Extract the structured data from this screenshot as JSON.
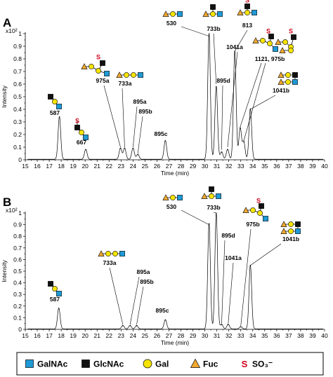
{
  "chart_data": [
    {
      "type": "line",
      "panel": "A",
      "scale_label": "x10²",
      "ylabel": "Intensity",
      "xlabel": "Time (min)",
      "xlim": [
        15,
        40
      ],
      "ylim": [
        0,
        1
      ],
      "xticks": [
        "15",
        "16",
        "17",
        "18",
        "19",
        "20",
        "21",
        "22",
        "23",
        "24",
        "25",
        "26",
        "27",
        "28",
        "29",
        "30",
        "31",
        "32",
        "33",
        "34",
        "35",
        "36",
        "37",
        "38",
        "39",
        "40"
      ],
      "yticks": [
        "0",
        "0.1",
        "0.2",
        "0.3",
        "0.4",
        "0.5",
        "0.6",
        "0.7",
        "0.8",
        "0.9",
        "1"
      ],
      "peaks": [
        {
          "label": "587",
          "x": 17.85,
          "y": 0.34
        },
        {
          "label": "667",
          "x": 20.05,
          "y": 0.08
        },
        {
          "label": "975a",
          "x": 22.95,
          "y": 0.09
        },
        {
          "label": "733a",
          "x": 23.3,
          "y": 0.09
        },
        {
          "label": "895a",
          "x": 24.0,
          "y": 0.09
        },
        {
          "label": "895b",
          "x": 24.4,
          "y": 0.04
        },
        {
          "label": "895c",
          "x": 26.7,
          "y": 0.15
        },
        {
          "label": "530",
          "x": 30.35,
          "y": 1.0
        },
        {
          "label": "733b",
          "x": 30.95,
          "y": 0.58
        },
        {
          "label": "895d",
          "x": 31.4,
          "y": 0.06
        },
        {
          "label": "1041a",
          "x": 31.9,
          "y": 0.08
        },
        {
          "label": "813",
          "x": 32.5,
          "y": 0.86
        },
        {
          "label": "1121, 975b",
          "x": 32.95,
          "y": 0.25
        },
        {
          "label": "",
          "x": 33.25,
          "y": 0.14
        },
        {
          "label": "1041b",
          "x": 33.8,
          "y": 0.4
        }
      ]
    },
    {
      "type": "line",
      "panel": "B",
      "scale_label": "x10²",
      "ylabel": "Intensity",
      "xlabel": "Time (min)",
      "xlim": [
        15,
        40
      ],
      "ylim": [
        0,
        1
      ],
      "xticks": [
        "15",
        "16",
        "17",
        "18",
        "19",
        "20",
        "21",
        "22",
        "23",
        "24",
        "25",
        "26",
        "27",
        "28",
        "29",
        "30",
        "31",
        "32",
        "33",
        "34",
        "35",
        "36",
        "37",
        "38",
        "39",
        "40"
      ],
      "yticks": [
        "0",
        "0.1",
        "0.2",
        "0.3",
        "0.4",
        "0.5",
        "0.6",
        "0.7",
        "0.8",
        "0.9",
        "1"
      ],
      "peaks": [
        {
          "label": "587",
          "x": 17.8,
          "y": 0.18
        },
        {
          "label": "733a",
          "x": 23.15,
          "y": 0.03
        },
        {
          "label": "895a",
          "x": 23.75,
          "y": 0.03
        },
        {
          "label": "895b",
          "x": 24.3,
          "y": 0.03
        },
        {
          "label": "895c",
          "x": 26.7,
          "y": 0.08
        },
        {
          "label": "530",
          "x": 30.35,
          "y": 0.91
        },
        {
          "label": "733b",
          "x": 30.95,
          "y": 1.0
        },
        {
          "label": "895d",
          "x": 31.4,
          "y": 0.04
        },
        {
          "label": "1041a",
          "x": 31.95,
          "y": 0.04
        },
        {
          "label": "975b",
          "x": 33.0,
          "y": 0.02
        },
        {
          "label": "1041b",
          "x": 33.8,
          "y": 0.55
        }
      ]
    }
  ],
  "legend": {
    "items": [
      {
        "label": "GalNAc",
        "shape": "square",
        "color": "#1f9ad6"
      },
      {
        "label": "GlcNAc",
        "shape": "square",
        "color": "#111111"
      },
      {
        "label": "Gal",
        "shape": "circle",
        "color": "#f5e400"
      },
      {
        "label": "Fuc",
        "shape": "triangle",
        "color": "#f0a830"
      }
    ],
    "sulfate_symbol": "S",
    "sulfate_label": "SO₃⁻"
  },
  "colors": {
    "galnac": "#1f9ad6",
    "glcnac": "#111111",
    "gal": "#f5e400",
    "fuc": "#f0a830",
    "sulfate": "#d0021b"
  }
}
